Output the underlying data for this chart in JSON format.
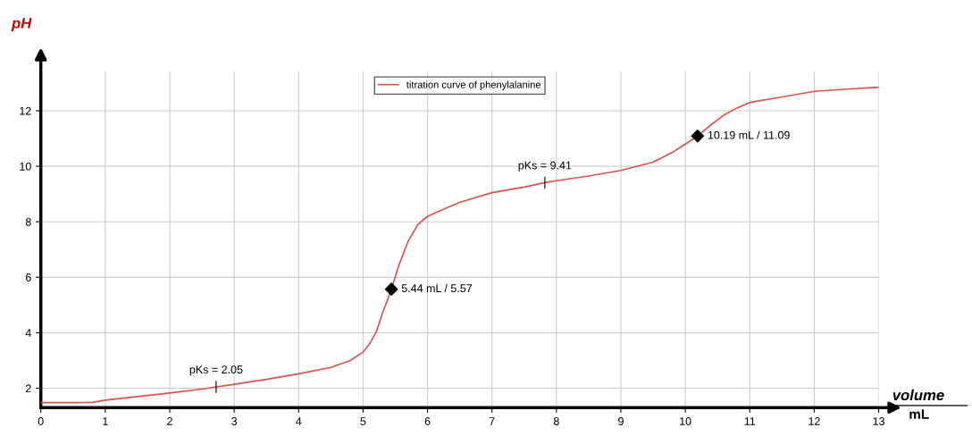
{
  "chart_data": {
    "type": "line",
    "xlabel": "volume",
    "x2label": "mL",
    "ylabel": "pH",
    "xlim": [
      0,
      13
    ],
    "ylim": [
      1.3,
      13.4
    ],
    "xticks": [
      0,
      1,
      2,
      3,
      4,
      5,
      6,
      7,
      8,
      9,
      10,
      11,
      12,
      13
    ],
    "yticks": [
      2,
      4,
      6,
      8,
      10,
      12
    ],
    "grid": true,
    "legend": "top",
    "marker": "none",
    "line_style": "solid",
    "series": [
      {
        "name": "titration curve of phenylalanine",
        "color": "#d9534f",
        "x": [
          0,
          0.5,
          0.8,
          1,
          1.5,
          2,
          2.5,
          2.72,
          3,
          3.5,
          4,
          4.5,
          4.8,
          5,
          5.1,
          5.2,
          5.3,
          5.44,
          5.55,
          5.7,
          5.85,
          6,
          6.5,
          7,
          7.5,
          7.82,
          8,
          8.5,
          9,
          9.5,
          9.8,
          10,
          10.19,
          10.4,
          10.6,
          10.8,
          11,
          11.5,
          12,
          12.5,
          13
        ],
        "values": [
          1.48,
          1.48,
          1.49,
          1.57,
          1.7,
          1.83,
          1.97,
          2.05,
          2.14,
          2.32,
          2.52,
          2.75,
          3.0,
          3.3,
          3.6,
          4.0,
          4.7,
          5.57,
          6.4,
          7.3,
          7.9,
          8.2,
          8.7,
          9.05,
          9.25,
          9.41,
          9.48,
          9.65,
          9.85,
          10.15,
          10.5,
          10.8,
          11.09,
          11.5,
          11.85,
          12.1,
          12.3,
          12.5,
          12.7,
          12.78,
          12.85
        ]
      },
      {
        "type": "scatter",
        "marker": "diamond",
        "color": "#000000",
        "x": [
          5.44,
          10.19
        ],
        "values": [
          5.57,
          11.09
        ],
        "value_labels": [
          "5.44 mL / 5.57",
          "10.19 mL / 11.09"
        ]
      }
    ],
    "annotations": [
      {
        "text": "pKs = 2.05",
        "x": 2.72,
        "y": 2.05
      },
      {
        "text": "pKs = 9.41",
        "x": 7.82,
        "y": 9.41
      }
    ]
  }
}
